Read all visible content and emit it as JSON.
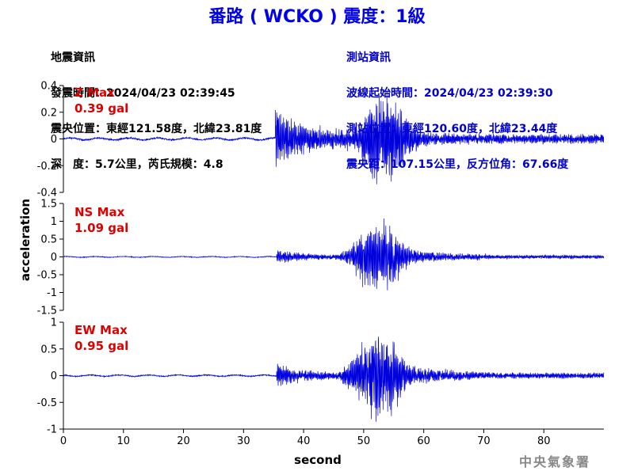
{
  "title": "番路 ( WCKO ) 震度：1級",
  "event_info": {
    "heading": "地震資訊",
    "origin_time": "發震時間：2024/04/23 02:39:45",
    "epicenter": "震央位置：東經121.58度，北緯23.81度",
    "depth_magnitude": "深　度：5.7公里，芮氏規模：4.8"
  },
  "station_info": {
    "heading": "測站資訊",
    "wave_start": "波線起始時間：2024/04/23 02:39:30",
    "station_location": "測站位置：東經120.60度，北緯23.44度",
    "distance_azimuth": "震央距：107.15公里，反方位角：67.66度"
  },
  "agency": "中央氣象署",
  "colors": {
    "title": "#0000ee",
    "trace": "#0000dd",
    "max_label": "#e00000",
    "station_info": "#0000cc"
  },
  "chart_data": [
    {
      "type": "line",
      "component": "Z",
      "max_label": "Z Max",
      "max_value": "0.39 gal",
      "xlabel": "second",
      "ylabel": "acceleration",
      "xlim": [
        0,
        90
      ],
      "ylim": [
        -0.4,
        0.4
      ],
      "yticks": [
        "0.4",
        "0.2",
        "0",
        "-0.2",
        "-0.4"
      ],
      "amplitude_envelope": {
        "noise": 0.012,
        "onset_s": 35.3,
        "p_peak": 0.2,
        "s_center_s": 53.5,
        "s_peak": 0.38,
        "coda_end_s": 90
      }
    },
    {
      "type": "line",
      "component": "NS",
      "max_label": "NS Max",
      "max_value": "1.09 gal",
      "xlabel": "second",
      "ylabel": "acceleration",
      "xlim": [
        0,
        90
      ],
      "ylim": [
        -1.5,
        1.5
      ],
      "yticks": [
        "1.5",
        "1",
        "0.5",
        "0",
        "-0.5",
        "-1",
        "-1.5"
      ],
      "amplitude_envelope": {
        "noise": 0.02,
        "onset_s": 35.5,
        "p_peak": 0.17,
        "s_center_s": 52.5,
        "s_peak": 1.09,
        "coda_end_s": 90
      }
    },
    {
      "type": "line",
      "component": "EW",
      "max_label": "EW Max",
      "max_value": "0.95 gal",
      "xlabel": "second",
      "ylabel": "acceleration",
      "xlim": [
        0,
        90
      ],
      "ylim": [
        -1,
        1
      ],
      "yticks": [
        "1",
        "0.5",
        "0",
        "-0.5",
        "-1"
      ],
      "xticks": [
        "0",
        "10",
        "20",
        "30",
        "40",
        "50",
        "60",
        "70",
        "80"
      ],
      "amplitude_envelope": {
        "noise": 0.02,
        "onset_s": 35.5,
        "p_peak": 0.2,
        "s_center_s": 52.5,
        "s_peak": 0.95,
        "coda_end_s": 90
      }
    }
  ]
}
